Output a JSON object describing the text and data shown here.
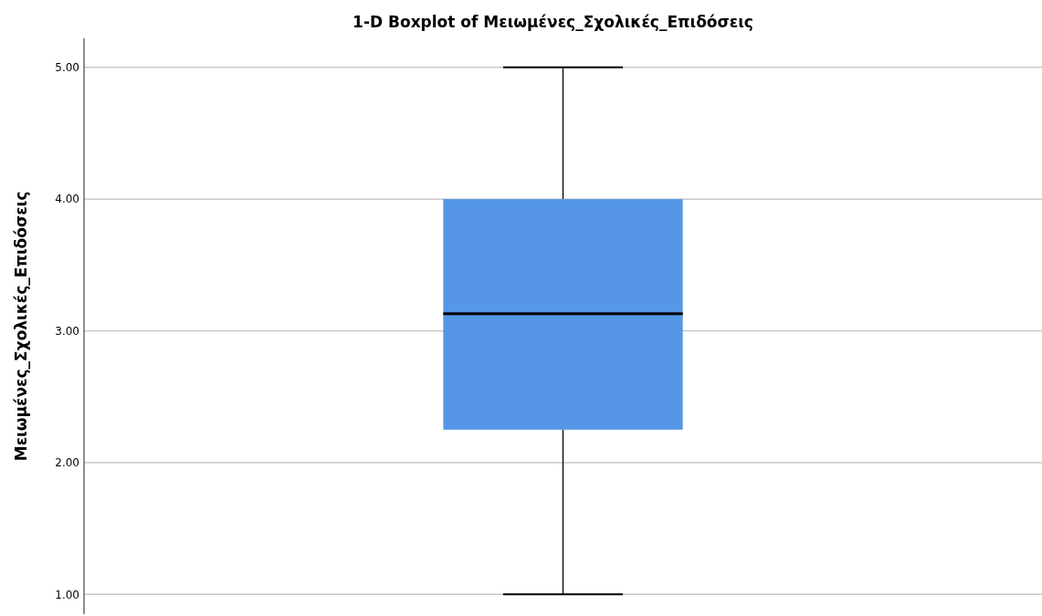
{
  "chart_data": {
    "type": "box",
    "title": "1-D Boxplot of Μειωμένες_Σχολικές_Επιδόσεις",
    "ylabel": "Μειωμένες_Σχολικές_Επιδόσεις",
    "categories": [
      null
    ],
    "color": "#5596e6",
    "boxes": [
      {
        "low": 1,
        "q1": 2.25,
        "median": 3.13,
        "q3": 4,
        "high": 5
      }
    ],
    "ylim": [
      0.85,
      5.22
    ],
    "yticks": [
      {
        "value": 1,
        "label": "1.00"
      },
      {
        "value": 2,
        "label": "2.00"
      },
      {
        "value": 3,
        "label": "3.00"
      },
      {
        "value": 4,
        "label": "4.00"
      },
      {
        "value": 5,
        "label": "5.00"
      }
    ],
    "grid": "y",
    "tick_labels": "y"
  }
}
